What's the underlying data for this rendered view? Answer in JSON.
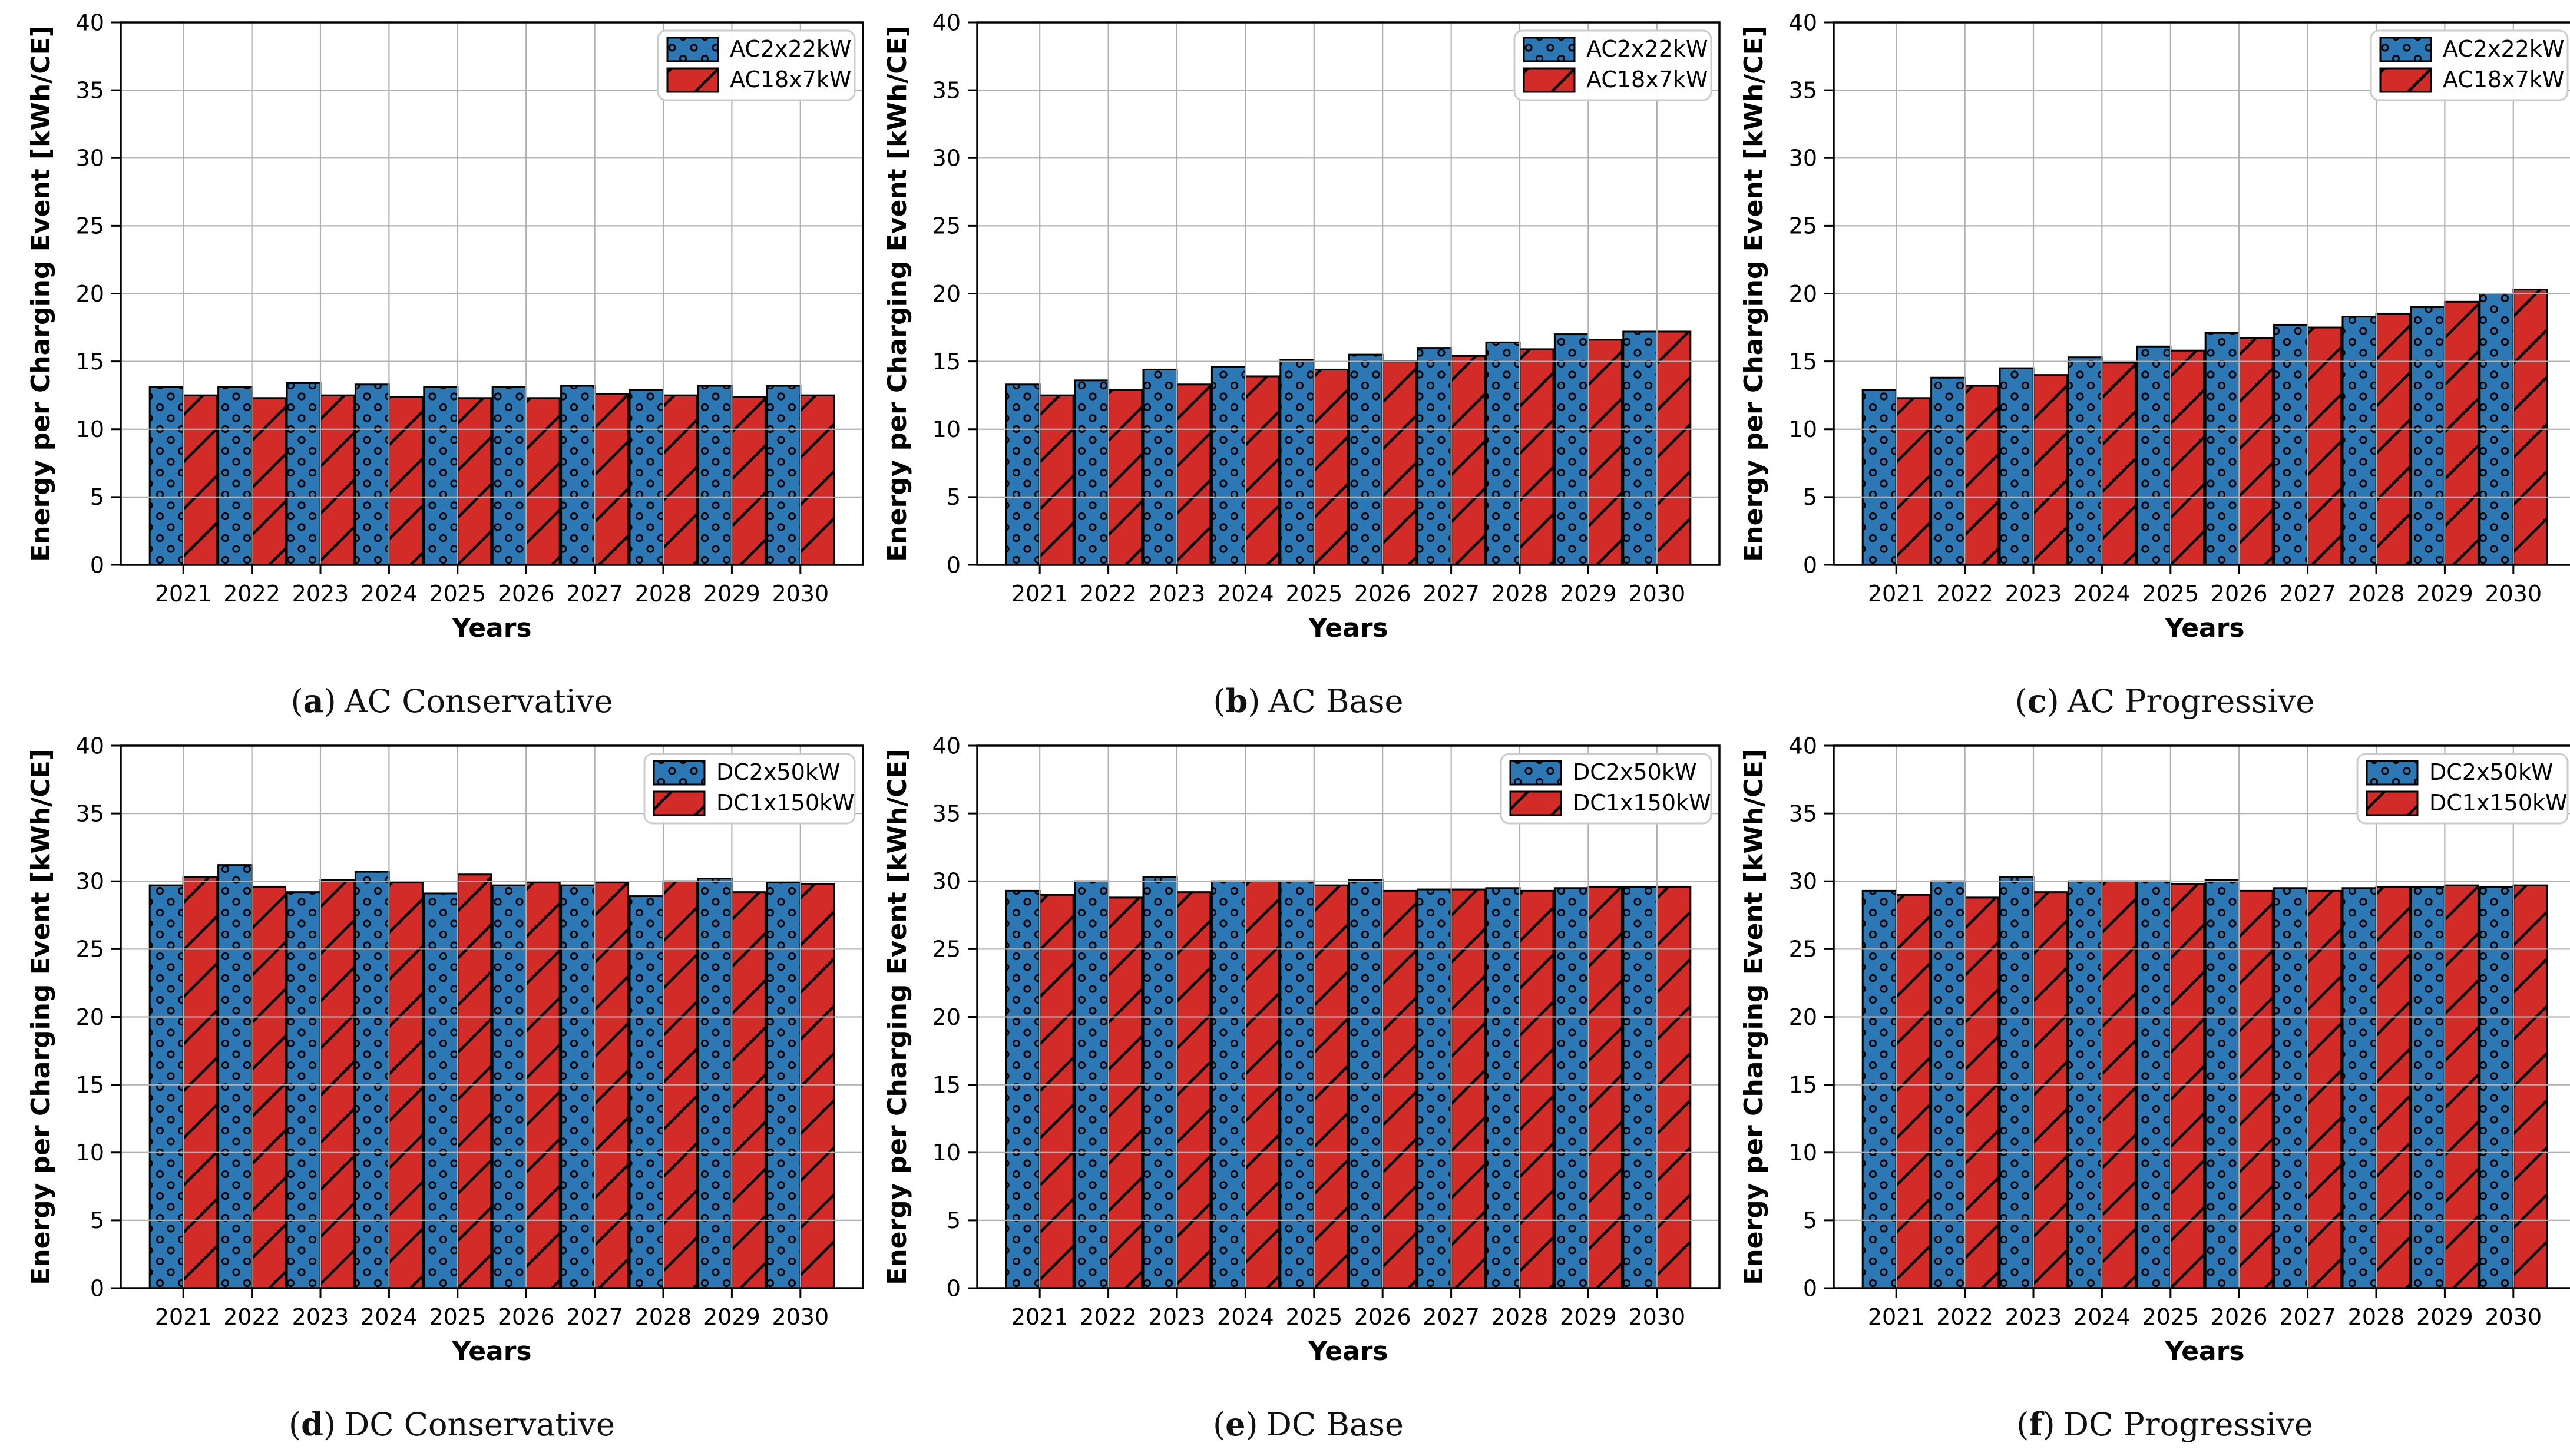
{
  "figure": {
    "paren_open": "(",
    "paren_close": ")",
    "ylabel": "Energy per Charging Event [kWh/CE]",
    "xlabel": "Years",
    "years": [
      "2021",
      "2022",
      "2023",
      "2024",
      "2025",
      "2026",
      "2027",
      "2028",
      "2029",
      "2030"
    ],
    "yticks": [
      0,
      5,
      10,
      15,
      20,
      25,
      30,
      35,
      40
    ],
    "ylim": [
      0,
      40
    ],
    "grid": true,
    "legend_position": "upper right",
    "colors": {
      "series_blue": "#2b78b5",
      "series_red": "#d32b28",
      "grid": "#b0b0b0",
      "axis": "#000000",
      "legend_border": "#cccccc"
    }
  },
  "chart_data": [
    {
      "type": "bar",
      "caption_letter": "a",
      "title": "AC Conservative",
      "xlabel": "Years",
      "ylabel": "Energy per Charging Event [kWh/CE]",
      "ylim": [
        0,
        40
      ],
      "categories": [
        "2021",
        "2022",
        "2023",
        "2024",
        "2025",
        "2026",
        "2027",
        "2028",
        "2029",
        "2030"
      ],
      "series": [
        {
          "name": "AC2x22kW",
          "hatch": "dots",
          "color": "#2b78b5",
          "values": [
            13.1,
            13.1,
            13.4,
            13.3,
            13.1,
            13.1,
            13.2,
            12.9,
            13.2,
            13.2
          ]
        },
        {
          "name": "AC18x7kW",
          "hatch": "diag",
          "color": "#d32b28",
          "values": [
            12.5,
            12.3,
            12.5,
            12.4,
            12.3,
            12.3,
            12.6,
            12.5,
            12.4,
            12.5
          ]
        }
      ]
    },
    {
      "type": "bar",
      "caption_letter": "b",
      "title": "AC Base",
      "xlabel": "Years",
      "ylabel": "Energy per Charging Event [kWh/CE]",
      "ylim": [
        0,
        40
      ],
      "categories": [
        "2021",
        "2022",
        "2023",
        "2024",
        "2025",
        "2026",
        "2027",
        "2028",
        "2029",
        "2030"
      ],
      "series": [
        {
          "name": "AC2x22kW",
          "hatch": "dots",
          "color": "#2b78b5",
          "values": [
            13.3,
            13.6,
            14.4,
            14.6,
            15.1,
            15.5,
            16.0,
            16.4,
            17.0,
            17.2
          ]
        },
        {
          "name": "AC18x7kW",
          "hatch": "diag",
          "color": "#d32b28",
          "values": [
            12.5,
            12.9,
            13.3,
            13.9,
            14.4,
            15.0,
            15.4,
            15.9,
            16.6,
            17.2
          ]
        }
      ]
    },
    {
      "type": "bar",
      "caption_letter": "c",
      "title": "AC Progressive",
      "xlabel": "Years",
      "ylabel": "Energy per Charging Event [kWh/CE]",
      "ylim": [
        0,
        40
      ],
      "categories": [
        "2021",
        "2022",
        "2023",
        "2024",
        "2025",
        "2026",
        "2027",
        "2028",
        "2029",
        "2030"
      ],
      "series": [
        {
          "name": "AC2x22kW",
          "hatch": "dots",
          "color": "#2b78b5",
          "values": [
            12.9,
            13.8,
            14.5,
            15.3,
            16.1,
            17.1,
            17.7,
            18.3,
            19.0,
            20.0
          ]
        },
        {
          "name": "AC18x7kW",
          "hatch": "diag",
          "color": "#d32b28",
          "values": [
            12.3,
            13.2,
            14.0,
            14.9,
            15.8,
            16.7,
            17.5,
            18.5,
            19.4,
            20.3
          ]
        }
      ]
    },
    {
      "type": "bar",
      "caption_letter": "d",
      "title": "DC Conservative",
      "xlabel": "Years",
      "ylabel": "Energy per Charging Event [kWh/CE]",
      "ylim": [
        0,
        40
      ],
      "categories": [
        "2021",
        "2022",
        "2023",
        "2024",
        "2025",
        "2026",
        "2027",
        "2028",
        "2029",
        "2030"
      ],
      "series": [
        {
          "name": "DC2x50kW",
          "hatch": "dots",
          "color": "#2b78b5",
          "values": [
            29.7,
            31.2,
            29.2,
            30.7,
            29.1,
            29.7,
            29.7,
            28.9,
            30.2,
            29.9
          ]
        },
        {
          "name": "DC1x150kW",
          "hatch": "diag",
          "color": "#d32b28",
          "values": [
            30.3,
            29.6,
            30.1,
            29.9,
            30.5,
            29.9,
            29.9,
            30.0,
            29.2,
            29.8
          ]
        }
      ]
    },
    {
      "type": "bar",
      "caption_letter": "e",
      "title": "DC Base",
      "xlabel": "Years",
      "ylabel": "Energy per Charging Event [kWh/CE]",
      "ylim": [
        0,
        40
      ],
      "categories": [
        "2021",
        "2022",
        "2023",
        "2024",
        "2025",
        "2026",
        "2027",
        "2028",
        "2029",
        "2030"
      ],
      "series": [
        {
          "name": "DC2x50kW",
          "hatch": "dots",
          "color": "#2b78b5",
          "values": [
            29.3,
            30.0,
            30.3,
            30.0,
            30.0,
            30.1,
            29.4,
            29.5,
            29.5,
            29.6
          ]
        },
        {
          "name": "DC1x150kW",
          "hatch": "diag",
          "color": "#d32b28",
          "values": [
            29.0,
            28.8,
            29.2,
            30.0,
            29.7,
            29.3,
            29.4,
            29.3,
            29.6,
            29.6
          ]
        }
      ]
    },
    {
      "type": "bar",
      "caption_letter": "f",
      "title": "DC Progressive",
      "xlabel": "Years",
      "ylabel": "Energy per Charging Event [kWh/CE]",
      "ylim": [
        0,
        40
      ],
      "categories": [
        "2021",
        "2022",
        "2023",
        "2024",
        "2025",
        "2026",
        "2027",
        "2028",
        "2029",
        "2030"
      ],
      "series": [
        {
          "name": "DC2x50kW",
          "hatch": "dots",
          "color": "#2b78b5",
          "values": [
            29.3,
            30.0,
            30.3,
            30.0,
            30.0,
            30.1,
            29.5,
            29.5,
            29.6,
            29.6
          ]
        },
        {
          "name": "DC1x150kW",
          "hatch": "diag",
          "color": "#d32b28",
          "values": [
            29.0,
            28.8,
            29.2,
            30.0,
            29.8,
            29.3,
            29.3,
            29.6,
            29.7,
            29.7
          ]
        }
      ]
    }
  ]
}
